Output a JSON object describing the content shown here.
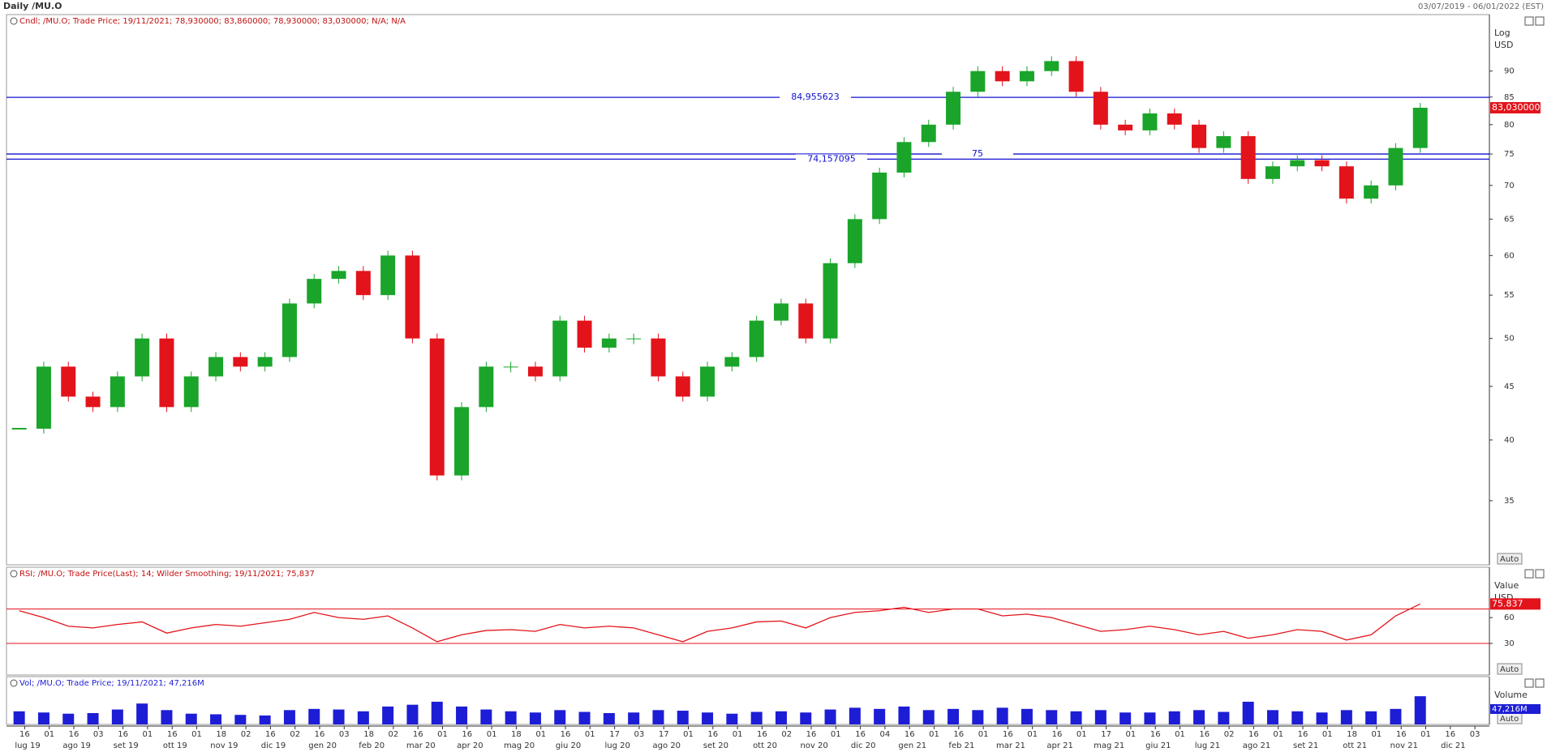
{
  "header": {
    "title": "Daily /MU.O",
    "range": "03/07/2019 - 06/01/2022 (EST)"
  },
  "x_axis": {
    "days": [
      "16",
      "01",
      "16",
      "03",
      "16",
      "01",
      "16",
      "01",
      "18",
      "02",
      "16",
      "02",
      "16",
      "03",
      "18",
      "02",
      "16",
      "01",
      "16",
      "01",
      "18",
      "01",
      "16",
      "01",
      "17",
      "03",
      "17",
      "01",
      "16",
      "01",
      "16",
      "02",
      "16",
      "01",
      "16",
      "04",
      "16",
      "01",
      "16",
      "01",
      "16",
      "01",
      "16",
      "01",
      "17",
      "01",
      "16",
      "01",
      "16",
      "02",
      "16",
      "01",
      "16",
      "01",
      "18",
      "01",
      "16",
      "01",
      "16",
      "03"
    ],
    "months": [
      "lug 19",
      "ago 19",
      "set 19",
      "ott 19",
      "nov 19",
      "dic 19",
      "gen 20",
      "feb 20",
      "mar 20",
      "apr 20",
      "mag 20",
      "giu 20",
      "lug 20",
      "ago 20",
      "set 20",
      "ott 20",
      "nov 20",
      "dic 20",
      "gen 21",
      "feb 21",
      "mar 21",
      "apr 21",
      "mag 21",
      "giu 21",
      "lug 21",
      "ago 21",
      "set 21",
      "ott 21",
      "nov 21",
      "dic 21"
    ]
  },
  "chart_data": [
    {
      "type": "candlestick",
      "legend": "Cndl; /MU.O; Trade Price; 19/11/2021; 78,930000; 83,860000; 78,930000; 83,030000; N/A; N/A",
      "axis_label": "Log",
      "axis_unit": "USD",
      "log_scale": true,
      "up_color": "#1aa52a",
      "down_color": "#e3131b",
      "close": [
        41,
        47,
        44,
        43,
        46,
        50,
        43,
        46,
        48,
        47,
        48,
        54,
        57,
        58,
        55,
        60,
        50,
        37,
        43,
        47,
        47,
        46,
        52,
        49,
        50,
        50,
        46,
        44,
        47,
        48,
        52,
        54,
        50,
        59,
        65,
        72,
        77,
        80,
        86,
        90,
        88,
        90,
        92,
        86,
        80,
        79,
        82,
        80,
        76,
        78,
        71,
        73,
        74,
        73,
        68,
        70,
        76,
        83.03
      ],
      "ylim": [
        30.4,
        101.9
      ],
      "yticks": [
        35,
        40,
        45,
        50,
        55,
        60,
        65,
        70,
        75,
        80,
        85,
        90
      ],
      "hlines": [
        {
          "value": 84.955623,
          "label": "84,955623"
        },
        {
          "value": 75,
          "label": "75"
        },
        {
          "value": 74.157095,
          "label": "74,157095"
        }
      ],
      "last": {
        "value": 83.03,
        "label": "83,030000"
      },
      "button": "Auto"
    },
    {
      "type": "line",
      "legend": "RSI; /MU.O; Trade Price(Last);  14; Wilder Smoothing;  19/11/2021; 75,837",
      "axis_label": "Value",
      "axis_unit": "USD",
      "color": "#e3131b",
      "values": [
        68,
        60,
        50,
        48,
        52,
        55,
        42,
        48,
        52,
        50,
        54,
        58,
        66,
        60,
        58,
        62,
        48,
        32,
        40,
        45,
        46,
        44,
        52,
        48,
        50,
        48,
        40,
        32,
        44,
        48,
        55,
        56,
        48,
        60,
        66,
        68,
        72,
        66,
        70,
        70,
        62,
        64,
        60,
        52,
        44,
        46,
        50,
        46,
        40,
        44,
        36,
        40,
        46,
        44,
        34,
        40,
        62,
        75.837
      ],
      "ylim": [
        -6.7,
        118.5
      ],
      "yticks": [
        30,
        60
      ],
      "levels": [
        30,
        70
      ],
      "button": "Auto"
    },
    {
      "type": "bar",
      "legend": "Vol; /MU.O; Trade Price; 19/11/2021; 47,216M",
      "axis_label": "Volume",
      "color": "#1d1dd6",
      "values": [
        22,
        20,
        18,
        19,
        25,
        35,
        24,
        18,
        17,
        16,
        15,
        24,
        26,
        25,
        22,
        30,
        33,
        38,
        30,
        25,
        22,
        20,
        24,
        21,
        19,
        20,
        24,
        23,
        20,
        18,
        21,
        22,
        20,
        25,
        28,
        26,
        30,
        24,
        26,
        24,
        28,
        26,
        24,
        22,
        24,
        20,
        20,
        22,
        24,
        21,
        38,
        24,
        22,
        20,
        24,
        22,
        26,
        47.216
      ],
      "ylim": [
        0,
        80
      ],
      "last": {
        "value": 47.216,
        "label": "47,216M"
      },
      "button": "Auto"
    }
  ]
}
